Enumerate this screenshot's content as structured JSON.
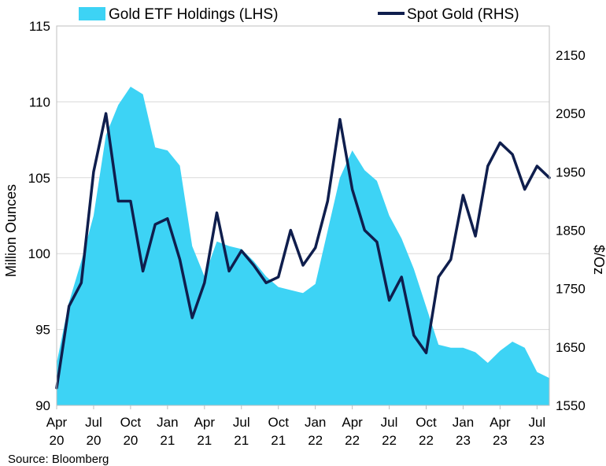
{
  "chart_data": {
    "type": "area-line",
    "title": "",
    "source": "Source: Bloomberg",
    "left_axis": {
      "label": "Million Ounces",
      "range": [
        90,
        115
      ],
      "ticks": [
        90,
        95,
        100,
        105,
        110,
        115
      ]
    },
    "right_axis": {
      "label": "$/Oz",
      "range": [
        1550,
        2200
      ],
      "ticks": [
        1550,
        1650,
        1750,
        1850,
        1950,
        2050,
        2150
      ]
    },
    "x_axis": {
      "range": [
        "2020-04",
        "2023-08"
      ],
      "ticks": [
        {
          "date": "2020-04",
          "month": "Apr",
          "year": "20"
        },
        {
          "date": "2020-07",
          "month": "Jul",
          "year": "20"
        },
        {
          "date": "2020-10",
          "month": "Oct",
          "year": "20"
        },
        {
          "date": "2021-01",
          "month": "Jan",
          "year": "21"
        },
        {
          "date": "2021-04",
          "month": "Apr",
          "year": "21"
        },
        {
          "date": "2021-07",
          "month": "Jul",
          "year": "21"
        },
        {
          "date": "2021-10",
          "month": "Oct",
          "year": "21"
        },
        {
          "date": "2022-01",
          "month": "Jan",
          "year": "22"
        },
        {
          "date": "2022-04",
          "month": "Apr",
          "year": "22"
        },
        {
          "date": "2022-07",
          "month": "Jul",
          "year": "22"
        },
        {
          "date": "2022-10",
          "month": "Oct",
          "year": "22"
        },
        {
          "date": "2023-01",
          "month": "Jan",
          "year": "23"
        },
        {
          "date": "2023-04",
          "month": "Apr",
          "year": "23"
        },
        {
          "date": "2023-07",
          "month": "Jul",
          "year": "23"
        }
      ]
    },
    "grid": true,
    "legend_position": "top",
    "series": [
      {
        "name": "Gold ETF Holdings (LHS)",
        "kind": "area",
        "axis": "left",
        "color": "#3dd3f5",
        "x": [
          "2020-04",
          "2020-05",
          "2020-06",
          "2020-07",
          "2020-08",
          "2020-09",
          "2020-10",
          "2020-11",
          "2020-12",
          "2021-01",
          "2021-02",
          "2021-03",
          "2021-04",
          "2021-05",
          "2021-06",
          "2021-07",
          "2021-08",
          "2021-09",
          "2021-10",
          "2021-11",
          "2021-12",
          "2022-01",
          "2022-02",
          "2022-03",
          "2022-04",
          "2022-05",
          "2022-06",
          "2022-07",
          "2022-08",
          "2022-09",
          "2022-10",
          "2022-11",
          "2022-12",
          "2023-01",
          "2023-02",
          "2023-03",
          "2023-04",
          "2023-05",
          "2023-06",
          "2023-07",
          "2023-08"
        ],
        "values": [
          92.8,
          96.8,
          99.5,
          102.5,
          107.8,
          109.8,
          111.0,
          110.5,
          107.0,
          106.8,
          105.8,
          100.5,
          98.5,
          100.8,
          100.5,
          100.3,
          99.5,
          98.5,
          97.8,
          97.6,
          97.4,
          98.0,
          101.5,
          105.0,
          106.8,
          105.5,
          104.8,
          102.5,
          101.0,
          99.0,
          96.5,
          94.0,
          93.8,
          93.8,
          93.5,
          92.8,
          93.6,
          94.2,
          93.8,
          92.2,
          91.8
        ]
      },
      {
        "name": "Spot Gold (RHS)",
        "kind": "line",
        "axis": "right",
        "color": "#0f1e4d",
        "x": [
          "2020-04",
          "2020-05",
          "2020-06",
          "2020-07",
          "2020-08",
          "2020-09",
          "2020-10",
          "2020-11",
          "2020-12",
          "2021-01",
          "2021-02",
          "2021-03",
          "2021-04",
          "2021-05",
          "2021-06",
          "2021-07",
          "2021-08",
          "2021-09",
          "2021-10",
          "2021-11",
          "2021-12",
          "2022-01",
          "2022-02",
          "2022-03",
          "2022-04",
          "2022-05",
          "2022-06",
          "2022-07",
          "2022-08",
          "2022-09",
          "2022-10",
          "2022-11",
          "2022-12",
          "2023-01",
          "2023-02",
          "2023-03",
          "2023-04",
          "2023-05",
          "2023-06",
          "2023-07",
          "2023-08"
        ],
        "values": [
          1580,
          1720,
          1760,
          1950,
          2050,
          1900,
          1900,
          1780,
          1860,
          1870,
          1800,
          1700,
          1760,
          1880,
          1780,
          1815,
          1790,
          1760,
          1770,
          1850,
          1790,
          1820,
          1900,
          2040,
          1920,
          1850,
          1830,
          1730,
          1770,
          1670,
          1640,
          1770,
          1800,
          1910,
          1840,
          1960,
          2000,
          1980,
          1920,
          1960,
          1940
        ]
      }
    ]
  }
}
